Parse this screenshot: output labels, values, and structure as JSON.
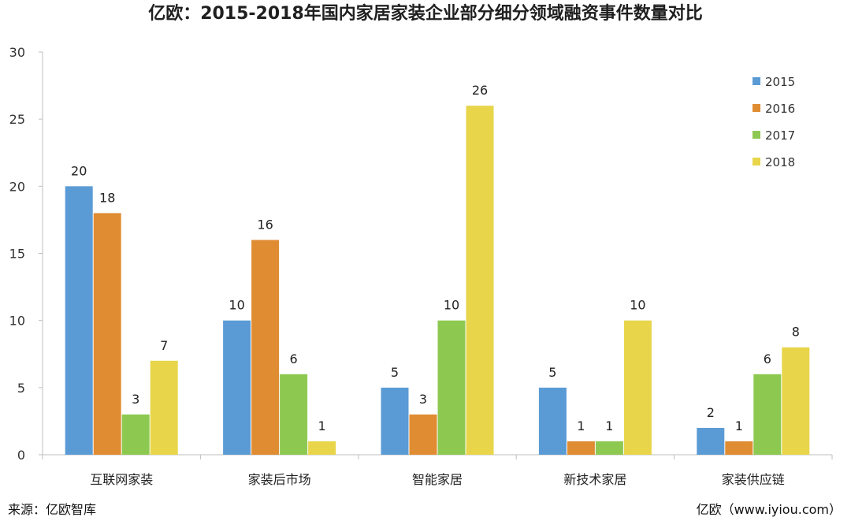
{
  "chart_data": {
    "type": "bar",
    "title": "亿欧：2015-2018年国内家居家装企业部分细分领域融资事件数量对比",
    "categories": [
      "互联网家装",
      "家装后市场",
      "智能家居",
      "新技术家居",
      "家装供应链"
    ],
    "series": [
      {
        "name": "2015",
        "color": "#5B9BD5",
        "values": [
          20,
          10,
          5,
          5,
          2
        ]
      },
      {
        "name": "2016",
        "color": "#E08C33",
        "values": [
          18,
          16,
          3,
          1,
          1
        ]
      },
      {
        "name": "2017",
        "color": "#8DC950",
        "values": [
          3,
          6,
          10,
          1,
          6
        ]
      },
      {
        "name": "2018",
        "color": "#E8D54A",
        "values": [
          7,
          1,
          26,
          10,
          8
        ]
      }
    ],
    "ylim": [
      0,
      30
    ],
    "yticks": [
      0,
      5,
      10,
      15,
      20,
      25,
      30
    ],
    "xlabel": "",
    "ylabel": "",
    "grid": false,
    "legend_position": "top-right",
    "data_labels": true
  },
  "footer": {
    "source": "来源：亿欧智库",
    "site": "亿欧（www.iyiou.com）"
  }
}
